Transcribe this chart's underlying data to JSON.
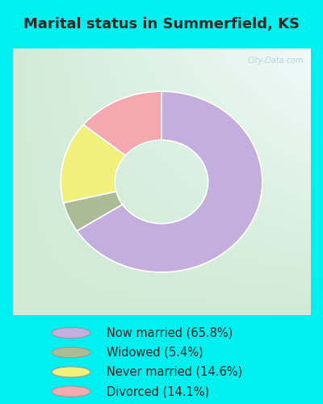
{
  "title": "Marital status in Summerfield, KS",
  "slices": [
    65.8,
    5.4,
    14.6,
    14.1
  ],
  "labels": [
    "Now married (65.8%)",
    "Widowed (5.4%)",
    "Never married (14.6%)",
    "Divorced (14.1%)"
  ],
  "colors": [
    "#c4aede",
    "#aabb96",
    "#f0f07a",
    "#f4a8b0"
  ],
  "outer_bg": "#00f0f0",
  "chart_bg_tl": "#d0ede8",
  "chart_bg_br": "#d8f0d0",
  "title_color": "#2a2a2a",
  "watermark": "City-Data.com",
  "start_angle": 90,
  "donut_outer_r": 0.78,
  "donut_width": 0.42,
  "title_fontsize": 13,
  "legend_fontsize": 10.5
}
